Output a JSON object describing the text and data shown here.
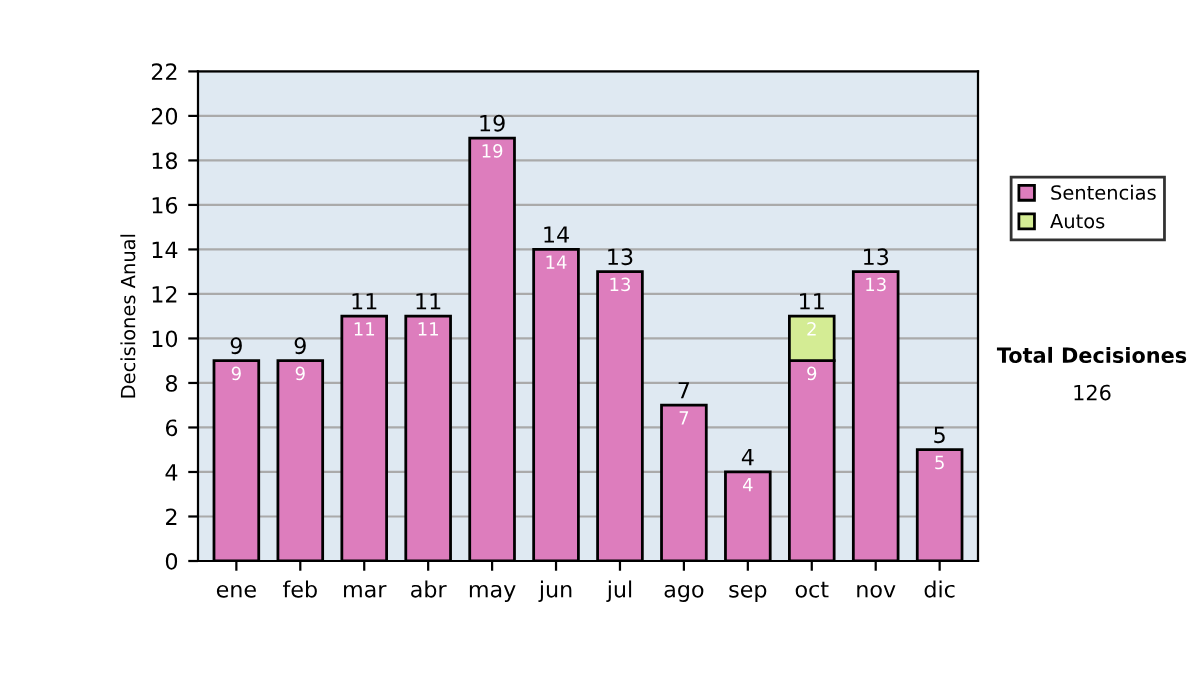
{
  "chart_data": {
    "type": "bar",
    "stacked": true,
    "ylabel": "Decisiones Anual",
    "categories": [
      "ene",
      "feb",
      "mar",
      "abr",
      "may",
      "jun",
      "jul",
      "ago",
      "sep",
      "oct",
      "nov",
      "dic"
    ],
    "series": [
      {
        "name": "Sentencias",
        "color": "#dd7dbd",
        "values": [
          9,
          9,
          11,
          11,
          19,
          14,
          13,
          7,
          4,
          9,
          13,
          5
        ],
        "value_labels": [
          "9",
          "9",
          "11",
          "11",
          "19",
          "14",
          "13",
          "7",
          "4",
          "9",
          "13",
          "5"
        ]
      },
      {
        "name": "Autos",
        "color": "#d4ec94",
        "values": [
          null,
          null,
          null,
          null,
          null,
          null,
          null,
          null,
          null,
          2,
          null,
          null
        ],
        "value_labels": [
          null,
          null,
          null,
          null,
          null,
          null,
          null,
          null,
          null,
          "2",
          null,
          null
        ]
      }
    ],
    "totals": [
      "9",
      "9",
      "11",
      "11",
      "19",
      "14",
      "13",
      "7",
      "4",
      "11",
      "13",
      "5"
    ],
    "ylim": [
      0,
      22
    ],
    "yticks": [
      0,
      2,
      4,
      6,
      8,
      10,
      12,
      14,
      16,
      18,
      20,
      22
    ],
    "grid": "y",
    "legend": "right",
    "annotations": [
      "Total Decisiones",
      "126"
    ]
  }
}
